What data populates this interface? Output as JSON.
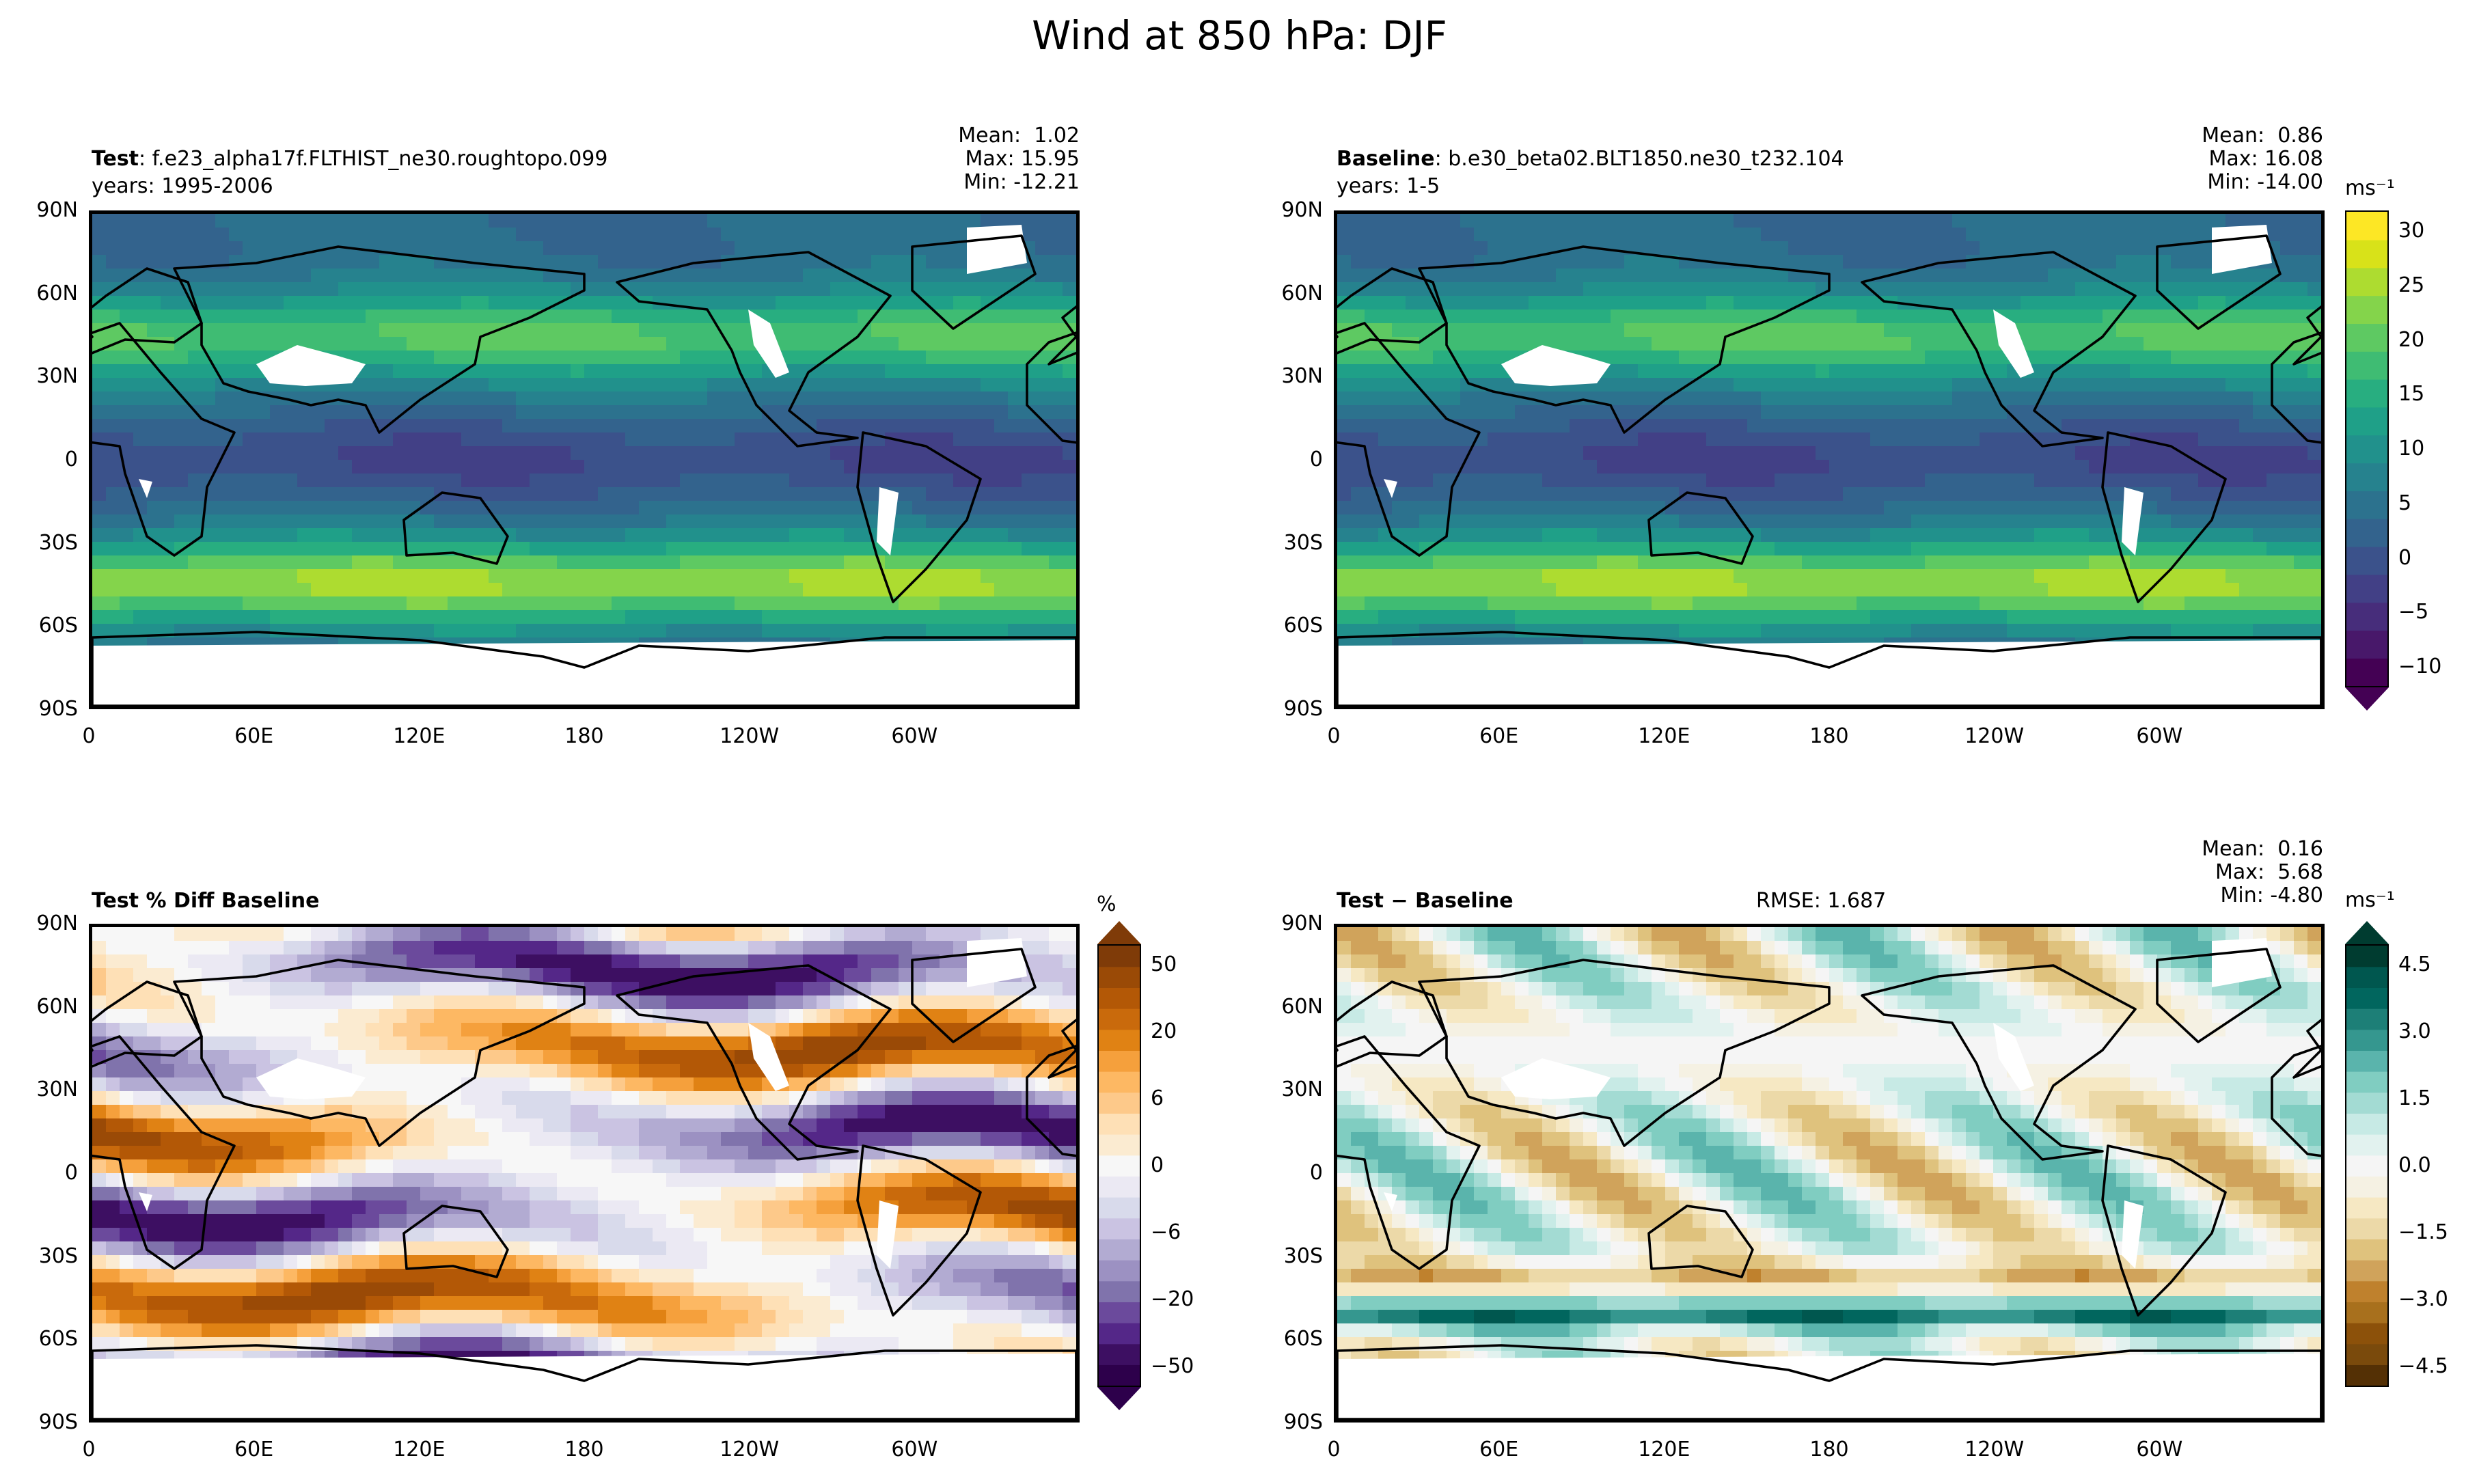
{
  "figure_title": "Wind at 850 hPa: DJF",
  "panels": {
    "test": {
      "label_bold": "Test",
      "label_rest": ": f.e23_alpha17f.FLTHIST_ne30.roughtopo.099",
      "years": "years: 1995-2006",
      "stats": "Mean:  1.02\nMax: 15.95\nMin: -12.21"
    },
    "baseline": {
      "label_bold": "Baseline",
      "label_rest": ": b.e30_beta02.BLT1850.ne30_t232.104",
      "years": "years: 1-5",
      "stats": "Mean:  0.86\nMax: 16.08\nMin: -14.00"
    },
    "pctdiff": {
      "label_bold": "Test % Diff Baseline"
    },
    "diff": {
      "label_bold": "Test − Baseline",
      "rmse": "RMSE: 1.687",
      "stats": "Mean:  0.16\nMax:  5.68\nMin: -4.80"
    }
  },
  "axes": {
    "lat_ticks": [
      "90N",
      "60N",
      "30N",
      "0",
      "30S",
      "60S",
      "90S"
    ],
    "lon_ticks": [
      "0",
      "60E",
      "120E",
      "180",
      "120W",
      "60W"
    ]
  },
  "colorbars": {
    "main": {
      "unit": "ms⁻¹",
      "ticks": [
        "30",
        "25",
        "20",
        "15",
        "10",
        "5",
        "0",
        "−5",
        "−10"
      ],
      "colors": [
        "#440154",
        "#48186a",
        "#472d7b",
        "#424086",
        "#3b528b",
        "#33638d",
        "#2c728e",
        "#26828e",
        "#21918c",
        "#1fa088",
        "#28ae80",
        "#3fbc73",
        "#5ec962",
        "#84d44b",
        "#addc30",
        "#d8e219",
        "#fde725"
      ]
    },
    "pct": {
      "unit": "%",
      "ticks": [
        "50",
        "20",
        "6",
        "0",
        "−6",
        "−20",
        "−50"
      ],
      "colors": [
        "#2d004b",
        "#3d0f62",
        "#542788",
        "#6b4a9c",
        "#8073ac",
        "#9c91c2",
        "#b2abd2",
        "#cac3e2",
        "#d8daeb",
        "#ebe9f3",
        "#f7f7f7",
        "#fbebd1",
        "#fee0b6",
        "#fdc98a",
        "#fdb863",
        "#f5a03c",
        "#e08214",
        "#c96a0c",
        "#b35806",
        "#9a4a06",
        "#7f3b08"
      ]
    },
    "diff": {
      "unit": "ms⁻¹",
      "ticks": [
        "4.5",
        "3.0",
        "1.5",
        "0.0",
        "−1.5",
        "−3.0",
        "−4.5"
      ],
      "colors": [
        "#543005",
        "#7a4a0c",
        "#8c510a",
        "#a8701d",
        "#bf812d",
        "#d0a35b",
        "#dfc27d",
        "#ecd9a8",
        "#f6e8c3",
        "#f5f1e3",
        "#f5f5f5",
        "#e2f2ef",
        "#c7eae5",
        "#a3dbd3",
        "#80cdc1",
        "#5ab4ac",
        "#35978f",
        "#1d7f77",
        "#01665e",
        "#00574f",
        "#003c30"
      ]
    }
  },
  "chart_data": [
    {
      "type": "heatmap",
      "title": "Test",
      "quantity": "850 hPa wind",
      "units": "ms⁻¹",
      "mean": 1.02,
      "max": 15.95,
      "min": -12.21,
      "levels_range": [
        -10,
        30
      ],
      "xlabel_ticks": [
        "0",
        "60E",
        "120E",
        "180",
        "120W",
        "60W"
      ],
      "ylabel_ticks": [
        "90N",
        "60N",
        "30N",
        "0",
        "30S",
        "60S",
        "90S"
      ]
    },
    {
      "type": "heatmap",
      "title": "Baseline",
      "quantity": "850 hPa wind",
      "units": "ms⁻¹",
      "mean": 0.86,
      "max": 16.08,
      "min": -14.0,
      "levels_range": [
        -10,
        30
      ]
    },
    {
      "type": "heatmap",
      "title": "Test % Diff Baseline",
      "units": "%",
      "levels_range": [
        -50,
        50
      ]
    },
    {
      "type": "heatmap",
      "title": "Test − Baseline",
      "units": "ms⁻¹",
      "mean": 0.16,
      "max": 5.68,
      "min": -4.8,
      "rmse": 1.687,
      "levels_range": [
        -4.5,
        4.5
      ]
    }
  ]
}
